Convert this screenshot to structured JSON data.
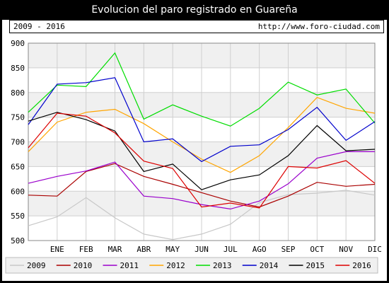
{
  "header": {
    "title": "Evolucion del paro registrado en Guareña"
  },
  "subheader": {
    "range": "2009 - 2016",
    "url": "http://www.foro-ciudad.com"
  },
  "chart_data": {
    "type": "line",
    "categories": [
      "",
      "ENE",
      "FEB",
      "MAR",
      "ABR",
      "MAY",
      "JUN",
      "JUL",
      "AGO",
      "SEP",
      "OCT",
      "NOV",
      "DIC"
    ],
    "ylim": [
      500,
      900
    ],
    "yticks": [
      500,
      550,
      600,
      650,
      700,
      750,
      800,
      850,
      900
    ],
    "grid": true,
    "legend_position": "bottom",
    "series": [
      {
        "name": "2009",
        "color": "#c8c8c8",
        "values": [
          530,
          548,
          587,
          546,
          513,
          502,
          513,
          533,
          577,
          593,
          596,
          602,
          592
        ]
      },
      {
        "name": "2010",
        "color": "#aa0000",
        "values": [
          592,
          590,
          640,
          656,
          630,
          614,
          597,
          580,
          568,
          590,
          618,
          610,
          614
        ]
      },
      {
        "name": "2011",
        "color": "#9a00cc",
        "values": [
          616,
          630,
          641,
          659,
          590,
          585,
          573,
          564,
          580,
          615,
          667,
          680,
          680
        ]
      },
      {
        "name": "2012",
        "color": "#ffa500",
        "values": [
          680,
          740,
          760,
          766,
          737,
          700,
          665,
          638,
          672,
          729,
          790,
          768,
          758
        ]
      },
      {
        "name": "2013",
        "color": "#00dd00",
        "values": [
          760,
          815,
          812,
          880,
          746,
          775,
          752,
          732,
          768,
          821,
          795,
          807,
          738
        ]
      },
      {
        "name": "2014",
        "color": "#0000cc",
        "values": [
          735,
          817,
          820,
          830,
          700,
          706,
          660,
          691,
          694,
          725,
          770,
          703,
          741
        ]
      },
      {
        "name": "2015",
        "color": "#000000",
        "values": [
          742,
          760,
          745,
          722,
          640,
          655,
          603,
          623,
          633,
          672,
          733,
          682,
          685
        ]
      },
      {
        "name": "2016",
        "color": "#dd0000",
        "values": [
          688,
          758,
          752,
          718,
          661,
          646,
          568,
          576,
          566,
          650,
          647,
          662,
          616
        ]
      }
    ]
  }
}
